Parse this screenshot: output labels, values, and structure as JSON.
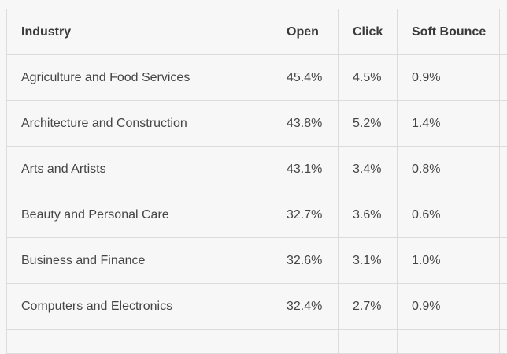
{
  "table": {
    "headers": [
      "Industry",
      "Open",
      "Click",
      "Soft Bounce"
    ],
    "rows": [
      {
        "industry": "Agriculture and Food Services",
        "open": "45.4%",
        "click": "4.5%",
        "soft_bounce": "0.9%"
      },
      {
        "industry": "Architecture and Construction",
        "open": "43.8%",
        "click": "5.2%",
        "soft_bounce": "1.4%"
      },
      {
        "industry": "Arts and Artists",
        "open": "43.1%",
        "click": "3.4%",
        "soft_bounce": "0.8%"
      },
      {
        "industry": "Beauty and Personal Care",
        "open": "32.7%",
        "click": "3.6%",
        "soft_bounce": "0.6%"
      },
      {
        "industry": "Business and Finance",
        "open": "32.6%",
        "click": "3.1%",
        "soft_bounce": "1.0%"
      },
      {
        "industry": "Computers and Electronics",
        "open": "32.4%",
        "click": "2.7%",
        "soft_bounce": "0.9%"
      }
    ]
  }
}
